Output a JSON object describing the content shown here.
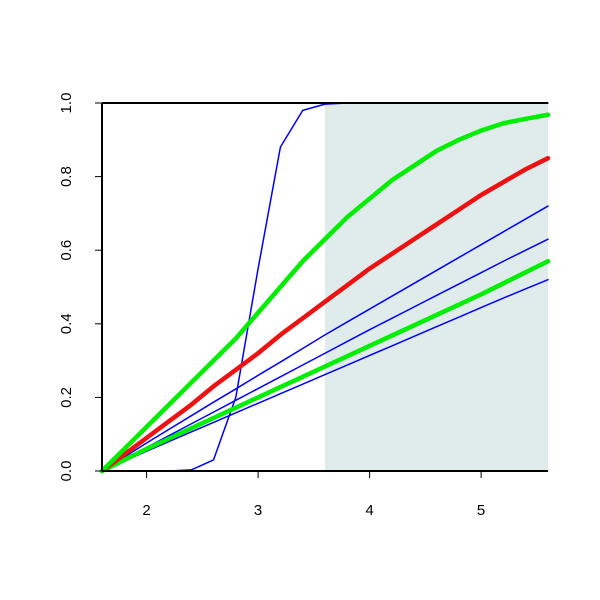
{
  "chart_data": {
    "type": "line",
    "x": [
      1.6,
      1.8,
      2.0,
      2.2,
      2.4,
      2.6,
      2.8,
      3.0,
      3.2,
      3.4,
      3.6,
      3.8,
      4.0,
      4.2,
      4.4,
      4.6,
      4.8,
      5.0,
      5.2,
      5.4,
      5.6
    ],
    "series": [
      {
        "color": "#0000ff",
        "width": 1.5,
        "values": [
          0,
          0,
          0,
          0,
          0.003,
          0.03,
          0.2,
          0.55,
          0.88,
          0.98,
          0.997,
          1,
          1,
          1,
          1,
          1,
          1,
          1,
          1,
          1,
          1
        ]
      },
      {
        "color": "#0000ff",
        "width": 1.5,
        "values": [
          0,
          0.038,
          0.076,
          0.113,
          0.15,
          0.187,
          0.223,
          0.26,
          0.296,
          0.333,
          0.37,
          0.405,
          0.44,
          0.475,
          0.51,
          0.545,
          0.58,
          0.615,
          0.65,
          0.685,
          0.72
        ]
      },
      {
        "color": "#0000ff",
        "width": 1.5,
        "values": [
          0,
          0.032,
          0.064,
          0.096,
          0.128,
          0.16,
          0.192,
          0.224,
          0.256,
          0.288,
          0.32,
          0.352,
          0.384,
          0.415,
          0.446,
          0.477,
          0.508,
          0.539,
          0.57,
          0.6,
          0.63
        ]
      },
      {
        "color": "#0000ff",
        "width": 1.5,
        "values": [
          0,
          0.027,
          0.054,
          0.08,
          0.106,
          0.132,
          0.158,
          0.184,
          0.21,
          0.236,
          0.262,
          0.288,
          0.314,
          0.34,
          0.366,
          0.392,
          0.418,
          0.444,
          0.47,
          0.495,
          0.52
        ]
      },
      {
        "color": "#00ee00",
        "width": 4.5,
        "values": [
          0,
          0.03,
          0.06,
          0.088,
          0.116,
          0.144,
          0.172,
          0.2,
          0.228,
          0.256,
          0.284,
          0.312,
          0.34,
          0.368,
          0.396,
          0.424,
          0.452,
          0.48,
          0.51,
          0.54,
          0.57
        ]
      },
      {
        "color": "#ee1111",
        "width": 4.5,
        "values": [
          0,
          0.045,
          0.09,
          0.135,
          0.18,
          0.23,
          0.275,
          0.32,
          0.37,
          0.415,
          0.46,
          0.505,
          0.55,
          0.59,
          0.63,
          0.67,
          0.71,
          0.75,
          0.785,
          0.82,
          0.85
        ]
      },
      {
        "color": "#00ee00",
        "width": 4.5,
        "values": [
          0,
          0.06,
          0.12,
          0.18,
          0.24,
          0.3,
          0.36,
          0.43,
          0.5,
          0.57,
          0.63,
          0.69,
          0.74,
          0.79,
          0.83,
          0.87,
          0.9,
          0.925,
          0.945,
          0.957,
          0.968
        ]
      }
    ],
    "shade": {
      "xlim": [
        3.6,
        5.6
      ],
      "color": "#e0ecec"
    },
    "xlim": [
      1.6,
      5.6
    ],
    "xticks": [
      2,
      3,
      4,
      5
    ],
    "ylim": [
      0,
      1
    ],
    "yticks": [
      {
        "value": 0,
        "label": "0.0"
      },
      0.2,
      0.4,
      0.6,
      0.8,
      {
        "value": 1,
        "label": "1.0"
      }
    ]
  }
}
